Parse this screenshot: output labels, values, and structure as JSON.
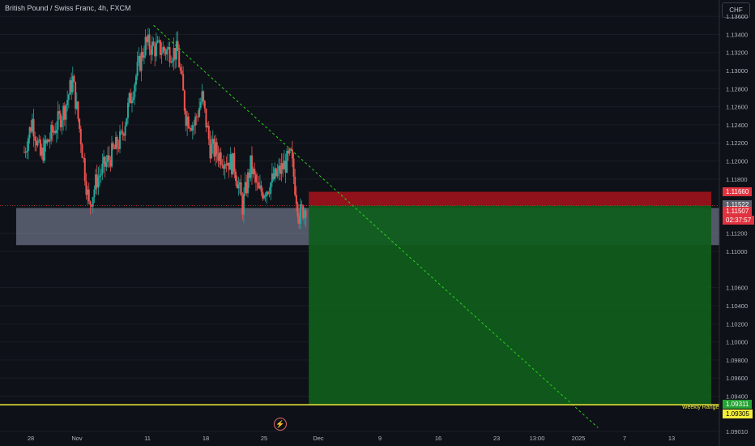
{
  "header": {
    "title": "British Pound / Swiss Franc, 4h, FXCM",
    "currency": "CHF"
  },
  "price_tags": [
    {
      "value": "1.11660",
      "color": "#e0333f",
      "text_color": "#ffffff"
    },
    {
      "value": "1.11522",
      "color": "#5d606b",
      "text_color": "#ffffff"
    },
    {
      "value": "1.11507",
      "color": "#e0333f",
      "text_color": "#ffffff"
    },
    {
      "value": "02:37:57",
      "color": "#e0333f",
      "text_color": "#ffffff"
    },
    {
      "value": "1.09311",
      "color": "#26a234",
      "text_color": "#ffffff"
    },
    {
      "value": "1.09305",
      "color": "#f3ee3a",
      "text_color": "#000000"
    }
  ],
  "weekly_range_label": "Weekly Range",
  "colors": {
    "bg": "#0e1117",
    "bull": "#26a69a",
    "bear": "#ef5350",
    "grid": "#1a1e26",
    "zone": "#8c94ac",
    "stop": "#a0131b",
    "target": "#0f5d1c",
    "trend": "#2ad11f",
    "yellow": "#f3ee3a"
  },
  "chart_data": {
    "type": "candlestick",
    "symbol": "GBPCHF",
    "timeframe": "4h",
    "y_ticks": [
      1.136,
      1.134,
      1.132,
      1.13,
      1.128,
      1.126,
      1.124,
      1.122,
      1.12,
      1.118,
      1.112,
      1.11,
      1.106,
      1.104,
      1.102,
      1.1,
      1.098,
      1.096,
      1.094,
      1.0901
    ],
    "y_tick_labels": [
      "1.13600",
      "1.13400",
      "1.13200",
      "1.13000",
      "1.12800",
      "1.12600",
      "1.12400",
      "1.12200",
      "1.12000",
      "1.11800",
      "1.11200",
      "1.11000",
      "1.10600",
      "1.10400",
      "1.10200",
      "1.10000",
      "1.09800",
      "1.09600",
      "1.09400",
      "1.09010"
    ],
    "ylim": [
      1.0901,
      1.1378
    ],
    "x_ticks": [
      "28",
      "Nov",
      "11",
      "18",
      "25",
      "Dec",
      "9",
      "16",
      "23",
      "13:00",
      "2025",
      "7",
      "13"
    ],
    "close_path": [
      [
        "2024-10-23",
        1.121
      ],
      [
        "2024-10-24",
        1.1245
      ],
      [
        "2024-10-25",
        1.1205
      ],
      [
        "2024-10-28",
        1.1258
      ],
      [
        "2024-10-29",
        1.129
      ],
      [
        "2024-10-30",
        1.1225
      ],
      [
        "2024-10-31",
        1.115
      ],
      [
        "2024-11-01",
        1.118
      ],
      [
        "2024-11-04",
        1.1225
      ],
      [
        "2024-11-05",
        1.1265
      ],
      [
        "2024-11-06",
        1.13
      ],
      [
        "2024-11-07",
        1.133
      ],
      [
        "2024-11-08",
        1.1325
      ],
      [
        "2024-11-11",
        1.132
      ],
      [
        "2024-11-12",
        1.125
      ],
      [
        "2024-11-13",
        1.124
      ],
      [
        "2024-11-14",
        1.127
      ],
      [
        "2024-11-15",
        1.1215
      ],
      [
        "2024-11-18",
        1.1195
      ],
      [
        "2024-11-19",
        1.115
      ],
      [
        "2024-11-20",
        1.1195
      ],
      [
        "2024-11-21",
        1.1165
      ],
      [
        "2024-11-22",
        1.117
      ],
      [
        "2024-11-25",
        1.1205
      ],
      [
        "2024-11-26",
        1.114
      ],
      [
        "2024-11-27",
        1.1152
      ]
    ],
    "support_zone": {
      "from": "2024-10-22",
      "to_edge": true,
      "low": 1.1107,
      "high": 1.1148
    },
    "position": {
      "entry": 1.11507,
      "stop": 1.1166,
      "target": 1.09311,
      "start": "2024-11-27",
      "end": "2025-01-16"
    },
    "trendline": {
      "from": [
        "2024-11-08",
        1.135
      ],
      "to": [
        "2025-01-02",
        1.0905
      ]
    },
    "weekly_range_level": 1.09305,
    "current_price": 1.11507
  }
}
